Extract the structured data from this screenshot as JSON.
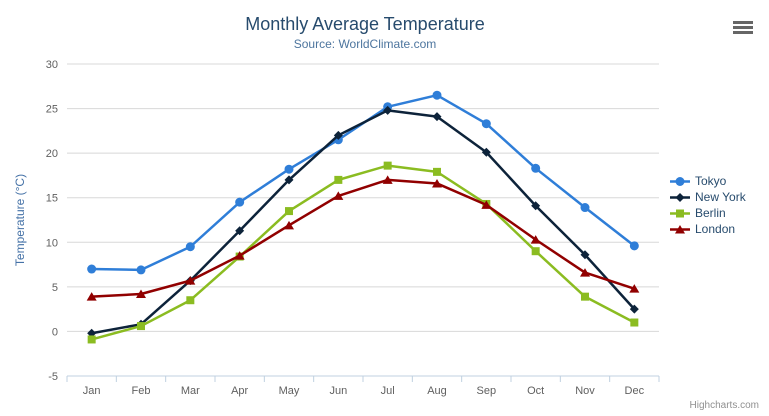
{
  "credits": "Highcharts.com",
  "export_menu_icon": "hamburger-icon",
  "styles": {
    "title_color": "#274b6d",
    "subtitle_color": "#4d759e",
    "axis_label_color": "#606060",
    "yaxis_title_color": "#4572a7",
    "gridline_color": "#d8d8d8",
    "axis_line_color": "#c0d0e0",
    "legend_text_color": "#274b6d",
    "credits_color": "#909090"
  },
  "chart_data": {
    "type": "line",
    "title": "Monthly Average Temperature",
    "subtitle": "Source: WorldClimate.com",
    "categories": [
      "Jan",
      "Feb",
      "Mar",
      "Apr",
      "May",
      "Jun",
      "Jul",
      "Aug",
      "Sep",
      "Oct",
      "Nov",
      "Dec"
    ],
    "series": [
      {
        "name": "Tokyo",
        "color": "#2f7ed8",
        "marker": "circle",
        "values": [
          7.0,
          6.9,
          9.5,
          14.5,
          18.2,
          21.5,
          25.2,
          26.5,
          23.3,
          18.3,
          13.9,
          9.6
        ]
      },
      {
        "name": "New York",
        "color": "#0d233a",
        "marker": "diamond",
        "values": [
          -0.2,
          0.8,
          5.7,
          11.3,
          17.0,
          22.0,
          24.8,
          24.1,
          20.1,
          14.1,
          8.6,
          2.5
        ]
      },
      {
        "name": "Berlin",
        "color": "#8bbc21",
        "marker": "square",
        "values": [
          -0.9,
          0.6,
          3.5,
          8.4,
          13.5,
          17.0,
          18.6,
          17.9,
          14.3,
          9.0,
          3.9,
          1.0
        ]
      },
      {
        "name": "London",
        "color": "#910000",
        "marker": "triangle",
        "values": [
          3.9,
          4.2,
          5.7,
          8.5,
          11.9,
          15.2,
          17.0,
          16.6,
          14.2,
          10.3,
          6.6,
          4.8
        ]
      }
    ],
    "xlabel": "",
    "ylabel": "Temperature (°C)",
    "ylim": [
      -5,
      30
    ],
    "ytick_step": 5,
    "grid": true,
    "legend_position": "right"
  }
}
